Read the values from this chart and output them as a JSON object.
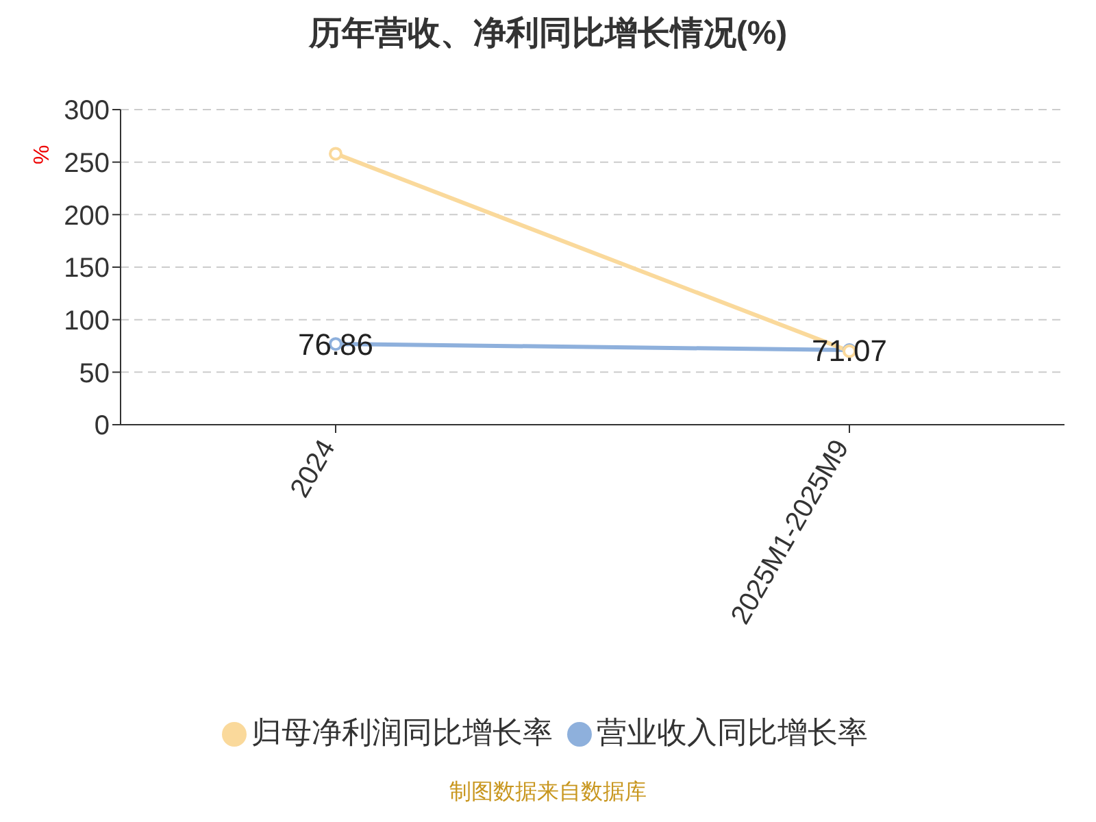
{
  "chart_data": {
    "type": "line",
    "title": "历年营收、净利同比增长情况(%)",
    "ylabel": "%",
    "categories": [
      "2024",
      "2025M1-2025M9"
    ],
    "series": [
      {
        "name": "营业收入同比增长率",
        "color": "#8eb0dc",
        "values": [
          76.86,
          71.07
        ],
        "value_labels": [
          "76.86",
          "71.07"
        ]
      },
      {
        "name": "归母净利润同比增长率",
        "color": "#fad99b",
        "values": [
          258,
          70
        ]
      }
    ],
    "ylim": [
      0,
      300
    ],
    "yticks": [
      0,
      50,
      100,
      150,
      200,
      250,
      300
    ],
    "grid": "y",
    "legend": "bottom",
    "marker": "circle",
    "line_style": "solid",
    "annotations": [
      "制图数据来自数据库"
    ]
  }
}
